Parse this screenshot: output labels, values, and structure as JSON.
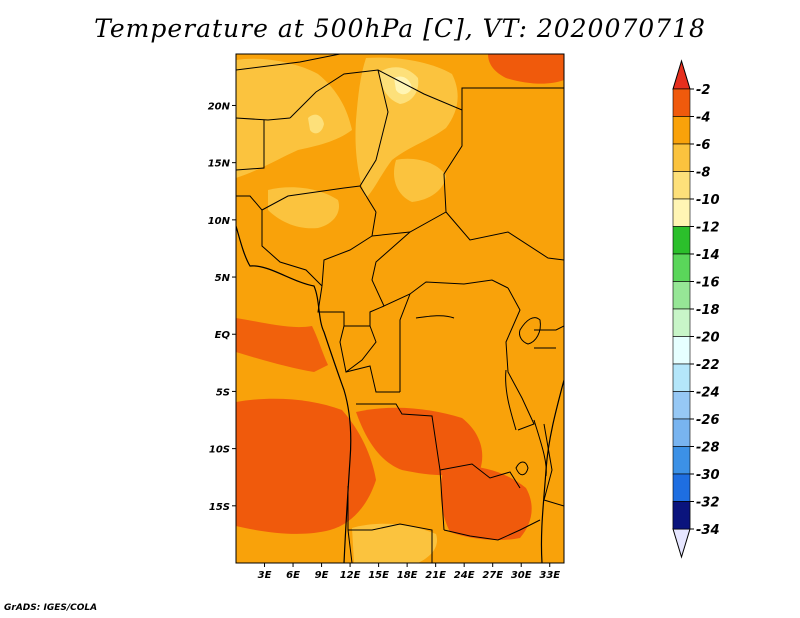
{
  "title": "Temperature at 500hPa [C], VT: 2020070718",
  "credit": "GrADS: IGES/COLA",
  "map": {
    "lon_range": [
      0,
      34.5
    ],
    "lat_range": [
      -20,
      24.5
    ],
    "x_ticks": [
      {
        "lon": 3,
        "label": "3E"
      },
      {
        "lon": 6,
        "label": "6E"
      },
      {
        "lon": 9,
        "label": "9E"
      },
      {
        "lon": 12,
        "label": "12E"
      },
      {
        "lon": 15,
        "label": "15E"
      },
      {
        "lon": 18,
        "label": "18E"
      },
      {
        "lon": 21,
        "label": "21E"
      },
      {
        "lon": 24,
        "label": "24E"
      },
      {
        "lon": 27,
        "label": "27E"
      },
      {
        "lon": 30,
        "label": "30E"
      },
      {
        "lon": 33,
        "label": "33E"
      }
    ],
    "y_ticks": [
      {
        "lat": 20,
        "label": "20N"
      },
      {
        "lat": 15,
        "label": "15N"
      },
      {
        "lat": 10,
        "label": "10N"
      },
      {
        "lat": 5,
        "label": "5N"
      },
      {
        "lat": 0,
        "label": "EQ"
      },
      {
        "lat": -5,
        "label": "5S"
      },
      {
        "lat": -10,
        "label": "10S"
      },
      {
        "lat": -15,
        "label": "15S"
      }
    ],
    "background_color": "#f9a20a"
  },
  "colorbar": {
    "labels": [
      "-2",
      "-4",
      "-6",
      "-8",
      "-10",
      "-12",
      "-14",
      "-16",
      "-18",
      "-20",
      "-22",
      "-24",
      "-26",
      "-28",
      "-30",
      "-32",
      "-34"
    ],
    "colors": [
      "#f05a0c",
      "#f9a20a",
      "#fbc33e",
      "#fde07a",
      "#fff5b4",
      "#2bbf2b",
      "#5ad65a",
      "#96e696",
      "#c8f5c8",
      "#e6ffff",
      "#b4e6fa",
      "#96c8f5",
      "#78b4f0",
      "#3c91e6",
      "#1e6ee1",
      "#0c46b4",
      "#0a147d"
    ],
    "top_arrow_color": "#e6301e",
    "bottom_arrow_color": "#e6e6ff"
  }
}
